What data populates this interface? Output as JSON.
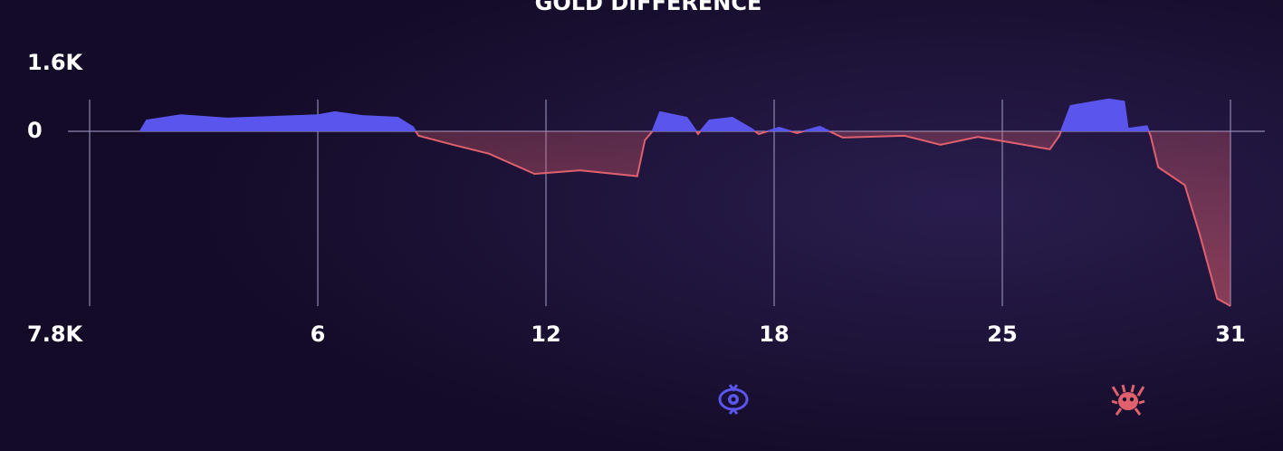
{
  "chart_data": {
    "type": "area",
    "title": "GOLD DIFFERENCE",
    "x": [
      1.33,
      1.5,
      2.4,
      3.6,
      4.8,
      6.0,
      6.45,
      7.17,
      8.1,
      8.5,
      8.65,
      9.55,
      10.5,
      11.7,
      12.9,
      14.4,
      14.6,
      14.8,
      15.0,
      15.7,
      16.0,
      16.3,
      16.9,
      17.4,
      17.6,
      18.15,
      18.7,
      19.4,
      20.1,
      22.0,
      23.1,
      24.25,
      25.3,
      26.25,
      26.5,
      26.8,
      27.8,
      28.2,
      28.3,
      28.8,
      28.9,
      29.1,
      29.8,
      30.2,
      30.65,
      30.9,
      31.0
    ],
    "values": [
      0,
      256,
      380,
      300,
      340,
      380,
      450,
      360,
      320,
      100,
      -200,
      -600,
      -1000,
      -1900,
      -1740,
      -2000,
      -400,
      0,
      450,
      320,
      -120,
      256,
      320,
      60,
      -120,
      85,
      -80,
      107,
      -280,
      -200,
      -600,
      -250,
      -520,
      -800,
      -200,
      600,
      750,
      700,
      60,
      120,
      -200,
      -1600,
      -2400,
      -4650,
      -7470,
      -7700,
      -7800
    ],
    "color": "#5a55ec",
    "negative_color": "#e0606e",
    "xlim": [
      0,
      31
    ],
    "xticks": [
      6,
      12,
      18,
      25,
      31
    ],
    "ylim": [
      -7800,
      1600
    ],
    "yticks": [
      {
        "value": 1600,
        "label": "1.6K"
      },
      0,
      {
        "value": -7800,
        "label": "7.8K"
      }
    ],
    "grid": true
  }
}
